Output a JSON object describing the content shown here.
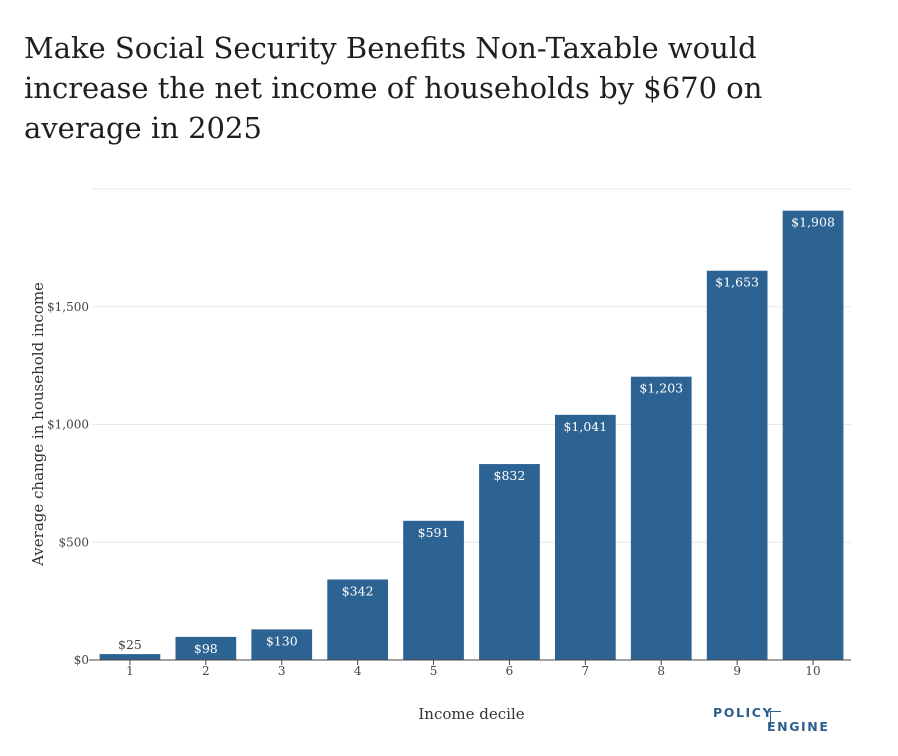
{
  "title": "Make Social Security Benefits Non-Taxable would increase the net income of households by $670 on average in 2025",
  "logo": {
    "line1": "POLICY",
    "line2": "ENGINE"
  },
  "colors": {
    "bar": "#2c6392",
    "grid": "#e8e8e8",
    "axis": "#444444"
  },
  "chart_data": {
    "type": "bar",
    "title": "Make Social Security Benefits Non-Taxable would increase the net income of households by $670 on average in 2025",
    "xlabel": "Income decile",
    "ylabel": "Average change in household income",
    "categories": [
      "1",
      "2",
      "3",
      "4",
      "5",
      "6",
      "7",
      "8",
      "9",
      "10"
    ],
    "values": [
      25,
      98,
      130,
      342,
      591,
      832,
      1041,
      1203,
      1653,
      1908
    ],
    "value_labels": [
      "$25",
      "$98",
      "$130",
      "$342",
      "$591",
      "$832",
      "$1,041",
      "$1,203",
      "$1,653",
      "$1,908"
    ],
    "ylim": [
      0,
      2000
    ],
    "yticks": [
      0,
      500,
      1000,
      1500
    ],
    "ytick_labels": [
      "$0",
      "$500",
      "$1,000",
      "$1,500"
    ],
    "grid": true,
    "legend": "none"
  }
}
